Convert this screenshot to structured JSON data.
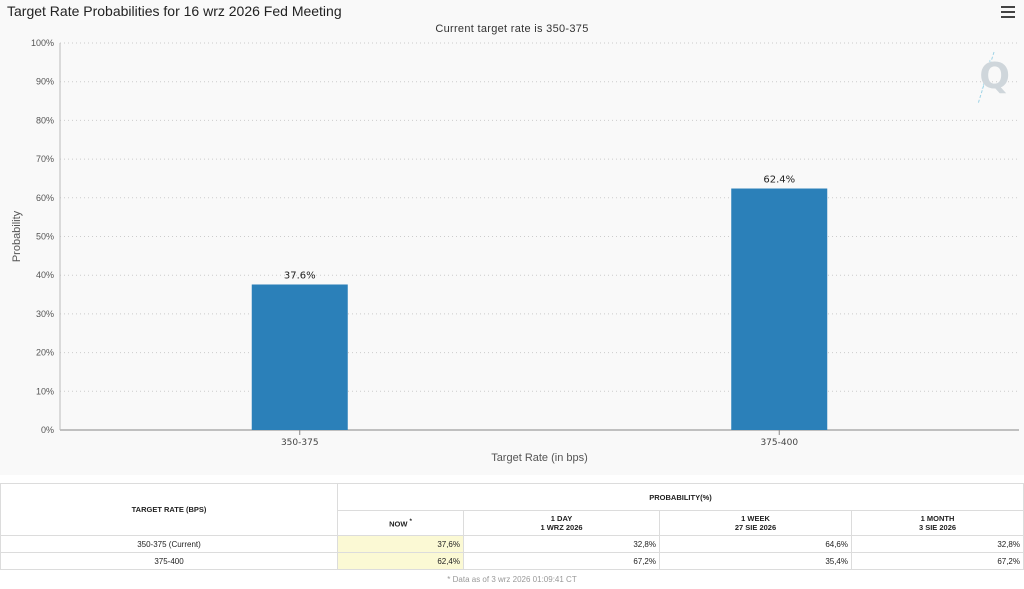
{
  "header": {
    "title": "Target Rate Probabilities for 16 wrz 2026 Fed Meeting",
    "subtitle": "Current target rate is 350-375"
  },
  "chart_data": {
    "type": "bar",
    "categories": [
      "350-375",
      "375-400"
    ],
    "values": [
      37.6,
      62.4
    ],
    "data_labels": [
      "37.6%",
      "62.4%"
    ],
    "xlabel": "Target Rate (in bps)",
    "ylabel": "Probability",
    "ylim": [
      0,
      100
    ],
    "yticks": [
      "0%",
      "10%",
      "20%",
      "30%",
      "40%",
      "50%",
      "60%",
      "70%",
      "80%",
      "90%",
      "100%"
    ],
    "grid": true,
    "bar_color": "#2b80b9"
  },
  "table": {
    "rate_header": "TARGET RATE (BPS)",
    "prob_header": "PROBABILITY(%)",
    "columns": [
      {
        "line1": "NOW",
        "mark": "*",
        "line2": ""
      },
      {
        "line1": "1 DAY",
        "line2": "1 WRZ 2026"
      },
      {
        "line1": "1 WEEK",
        "line2": "27 SIE 2026"
      },
      {
        "line1": "1 MONTH",
        "line2": "3 SIE 2026"
      }
    ],
    "rows": [
      {
        "rate": "350-375 (Current)",
        "values": [
          "37,6%",
          "32,8%",
          "64,6%",
          "32,8%"
        ]
      },
      {
        "rate": "375-400",
        "values": [
          "62,4%",
          "67,2%",
          "35,4%",
          "67,2%"
        ]
      }
    ],
    "now_color": "#fbf9d4"
  },
  "footnote": "* Data as of 3 wrz 2026 01:09:41 CT"
}
